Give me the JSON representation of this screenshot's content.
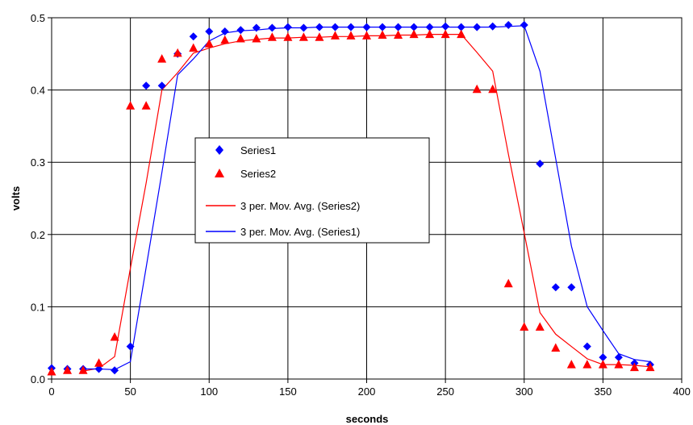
{
  "chart_data": {
    "type": "scatter",
    "xlabel": "seconds",
    "ylabel": "volts",
    "xlim": [
      0,
      400
    ],
    "ylim": [
      0,
      0.5
    ],
    "x_ticks": [
      0,
      50,
      100,
      150,
      200,
      250,
      300,
      350,
      400
    ],
    "y_ticks": [
      0.0,
      0.1,
      0.2,
      0.3,
      0.4,
      0.5
    ],
    "x_tick_labels": [
      "0",
      "50",
      "100",
      "150",
      "200",
      "250",
      "300",
      "350",
      "400"
    ],
    "y_tick_labels": [
      "0.0",
      "0.1",
      "0.2",
      "0.3",
      "0.4",
      "0.5"
    ],
    "grid": true,
    "legend_position": "center-left",
    "series": [
      {
        "name": "Series1",
        "marker": "diamond",
        "color": "#0000ff",
        "x": [
          0,
          10,
          20,
          30,
          40,
          50,
          60,
          70,
          80,
          90,
          100,
          110,
          120,
          130,
          140,
          150,
          160,
          170,
          180,
          190,
          200,
          210,
          220,
          230,
          240,
          250,
          260,
          270,
          280,
          290,
          300,
          310,
          320,
          330,
          340,
          350,
          360,
          370,
          380
        ],
        "y": [
          0.015,
          0.014,
          0.014,
          0.014,
          0.012,
          0.045,
          0.406,
          0.406,
          0.45,
          0.474,
          0.481,
          0.481,
          0.483,
          0.486,
          0.486,
          0.487,
          0.486,
          0.487,
          0.487,
          0.487,
          0.487,
          0.487,
          0.487,
          0.487,
          0.487,
          0.488,
          0.487,
          0.487,
          0.488,
          0.49,
          0.49,
          0.298,
          0.127,
          0.127,
          0.045,
          0.03,
          0.03,
          0.022,
          0.02
        ]
      },
      {
        "name": "Series2",
        "marker": "triangle",
        "color": "#ff0000",
        "x": [
          0,
          10,
          20,
          30,
          40,
          50,
          60,
          70,
          80,
          90,
          100,
          110,
          120,
          130,
          140,
          150,
          160,
          170,
          180,
          190,
          200,
          210,
          220,
          230,
          240,
          250,
          260,
          270,
          280,
          290,
          300,
          310,
          320,
          330,
          340,
          350,
          360,
          370,
          380
        ],
        "y": [
          0.01,
          0.012,
          0.012,
          0.022,
          0.058,
          0.378,
          0.378,
          0.443,
          0.451,
          0.458,
          0.464,
          0.469,
          0.471,
          0.471,
          0.473,
          0.473,
          0.473,
          0.473,
          0.475,
          0.475,
          0.475,
          0.476,
          0.476,
          0.477,
          0.477,
          0.477,
          0.477,
          0.401,
          0.401,
          0.132,
          0.072,
          0.072,
          0.043,
          0.02,
          0.02,
          0.02,
          0.02,
          0.016,
          0.016
        ]
      },
      {
        "name": "3 per. Mov. Avg. (Series2)",
        "type": "line",
        "color": "#ff0000",
        "x": [
          20,
          30,
          40,
          50,
          60,
          70,
          80,
          90,
          100,
          110,
          120,
          130,
          140,
          150,
          160,
          170,
          180,
          190,
          200,
          210,
          220,
          230,
          240,
          250,
          260,
          270,
          280,
          290,
          300,
          310,
          320,
          330,
          340,
          350,
          360,
          370,
          380
        ],
        "y": [
          0.011,
          0.015,
          0.031,
          0.153,
          0.271,
          0.4,
          0.424,
          0.451,
          0.458,
          0.464,
          0.468,
          0.47,
          0.472,
          0.472,
          0.473,
          0.473,
          0.474,
          0.474,
          0.475,
          0.475,
          0.476,
          0.476,
          0.477,
          0.477,
          0.477,
          0.452,
          0.426,
          0.311,
          0.202,
          0.092,
          0.062,
          0.045,
          0.028,
          0.02,
          0.02,
          0.019,
          0.017
        ]
      },
      {
        "name": "3 per. Mov. Avg. (Series1)",
        "type": "line",
        "color": "#0000ff",
        "x": [
          20,
          30,
          40,
          50,
          60,
          70,
          80,
          90,
          100,
          110,
          120,
          130,
          140,
          150,
          160,
          170,
          180,
          190,
          200,
          210,
          220,
          230,
          240,
          250,
          260,
          270,
          280,
          290,
          300,
          310,
          320,
          330,
          340,
          350,
          360,
          370,
          380
        ],
        "y": [
          0.014,
          0.014,
          0.013,
          0.024,
          0.154,
          0.286,
          0.421,
          0.443,
          0.468,
          0.479,
          0.482,
          0.483,
          0.485,
          0.486,
          0.486,
          0.487,
          0.487,
          0.487,
          0.487,
          0.487,
          0.487,
          0.487,
          0.487,
          0.487,
          0.487,
          0.487,
          0.487,
          0.488,
          0.489,
          0.426,
          0.305,
          0.184,
          0.1,
          0.067,
          0.035,
          0.027,
          0.024
        ]
      }
    ]
  }
}
